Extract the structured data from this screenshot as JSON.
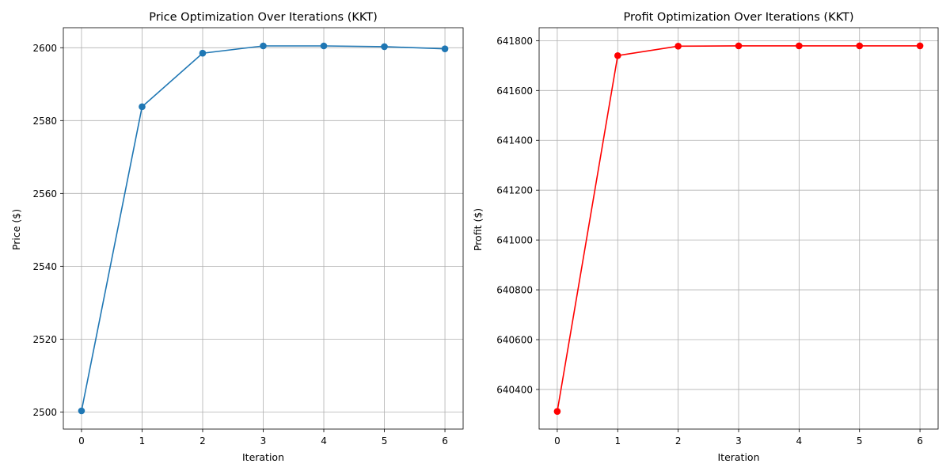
{
  "chart_data": [
    {
      "type": "line",
      "title": "Price Optimization Over Iterations (KKT)",
      "xlabel": "Iteration",
      "ylabel": "Price ($)",
      "x": [
        0,
        1,
        2,
        3,
        4,
        5,
        6
      ],
      "series": [
        {
          "color": "#1f77b4",
          "marker": "circle",
          "values": [
            2500.3,
            2583.8,
            2598.5,
            2600.5,
            2600.5,
            2600.3,
            2599.7
          ]
        }
      ],
      "xticks": [
        0,
        1,
        2,
        3,
        4,
        5,
        6
      ],
      "yticks": [
        2500,
        2520,
        2540,
        2560,
        2580,
        2600
      ],
      "xlim": [
        -0.3,
        6.3
      ],
      "ylim": [
        2495.3,
        2605.5
      ],
      "grid": true
    },
    {
      "type": "line",
      "title": "Profit Optimization Over Iterations (KKT)",
      "xlabel": "Iteration",
      "ylabel": "Profit ($)",
      "x": [
        0,
        1,
        2,
        3,
        4,
        5,
        6
      ],
      "series": [
        {
          "color": "#ff0000",
          "marker": "circle",
          "values": [
            640312,
            641740,
            641778,
            641779,
            641779,
            641779,
            641779
          ]
        }
      ],
      "xticks": [
        0,
        1,
        2,
        3,
        4,
        5,
        6
      ],
      "yticks": [
        640400,
        640600,
        640800,
        641000,
        641200,
        641400,
        641600,
        641800
      ],
      "xlim": [
        -0.3,
        6.3
      ],
      "ylim": [
        640241,
        641852
      ],
      "grid": true
    }
  ]
}
